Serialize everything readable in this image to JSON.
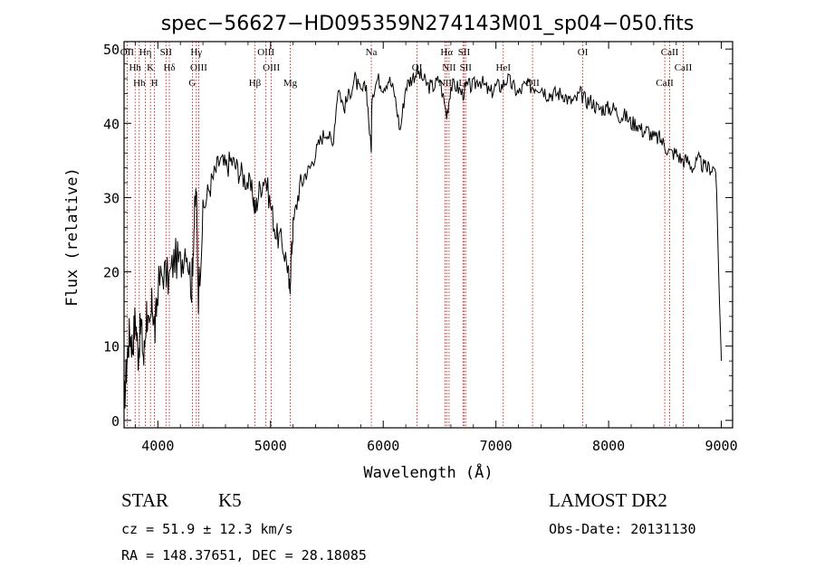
{
  "chart_data": {
    "type": "line",
    "title": "spec−56627−HD095359N274143M01_sp04−050.fits",
    "xlabel": "Wavelength (Å)",
    "ylabel": "Flux (relative)",
    "xlim": [
      3700,
      9100
    ],
    "ylim": [
      -1,
      51
    ],
    "xticks": [
      4000,
      5000,
      6000,
      7000,
      8000,
      9000
    ],
    "yticks": [
      0,
      10,
      20,
      30,
      40,
      50
    ],
    "grid": false,
    "legend": "none",
    "line_color": "#000000",
    "marker_color": "#cc0000",
    "series": [
      {
        "x": [
          3700,
          3725,
          3750,
          3775,
          3800,
          3825,
          3850,
          3875,
          3900,
          3925,
          3950,
          3975,
          4000,
          4050,
          4100,
          4150,
          4200,
          4250,
          4300,
          4320,
          4340,
          4360,
          4400,
          4450,
          4500,
          4550,
          4600,
          4650,
          4700,
          4750,
          4800,
          4850,
          4861,
          4900,
          4950,
          5000,
          5050,
          5100,
          5150,
          5170,
          5183,
          5200,
          5250,
          5300,
          5350,
          5400,
          5450,
          5500,
          5550,
          5600,
          5650,
          5700,
          5750,
          5800,
          5850,
          5893,
          5900,
          5950,
          6000,
          6050,
          6100,
          6150,
          6200,
          6250,
          6300,
          6350,
          6400,
          6450,
          6500,
          6563,
          6600,
          6650,
          6700,
          6750,
          6800,
          6850,
          6900,
          6950,
          7000,
          7050,
          7100,
          7150,
          7200,
          7250,
          7300,
          7350,
          7400,
          7450,
          7500,
          7550,
          7600,
          7650,
          7700,
          7750,
          7800,
          7850,
          7900,
          7950,
          8000,
          8050,
          8100,
          8150,
          8200,
          8250,
          8300,
          8350,
          8400,
          8450,
          8500,
          8550,
          8600,
          8650,
          8700,
          8750,
          8800,
          8850,
          8900,
          8950,
          9000
        ],
        "y": [
          2,
          8,
          12,
          10,
          14,
          9,
          13,
          8,
          15,
          11,
          16,
          12,
          18,
          20,
          19,
          22,
          21,
          24,
          18,
          26,
          31,
          17,
          28,
          31,
          33,
          35,
          34,
          35,
          34,
          33,
          32,
          30,
          28,
          31,
          33,
          29,
          25,
          24,
          21,
          17,
          22,
          26,
          31,
          33,
          34,
          36,
          38,
          39,
          37,
          45,
          42,
          44,
          46,
          44,
          45,
          36,
          44,
          46,
          45,
          46,
          44,
          39,
          45,
          46,
          47,
          46,
          45,
          45,
          46,
          41,
          45,
          45,
          44,
          45,
          45,
          46,
          45,
          44,
          45,
          45,
          46,
          45,
          44,
          45,
          45,
          45,
          45,
          44,
          44,
          44,
          44,
          43,
          43,
          44,
          43,
          43,
          42,
          42,
          42,
          42,
          41,
          41,
          40,
          40,
          39,
          39,
          38,
          38,
          37,
          36,
          36,
          35,
          35,
          34,
          35,
          34,
          34,
          34,
          8
        ]
      }
    ],
    "lines": [
      {
        "x": 3727,
        "label": "OII"
      },
      {
        "x": 3798,
        "label": "Hh"
      },
      {
        "x": 3835,
        "label": "Hh"
      },
      {
        "x": 3889,
        "label": "Hη"
      },
      {
        "x": 3934,
        "label": "K"
      },
      {
        "x": 3970,
        "label": "H"
      },
      {
        "x": 4072,
        "label": "SII"
      },
      {
        "x": 4102,
        "label": "Hδ"
      },
      {
        "x": 4306,
        "label": "G"
      },
      {
        "x": 4341,
        "label": "Hγ"
      },
      {
        "x": 4363,
        "label": "OIII"
      },
      {
        "x": 4861,
        "label": "Hβ"
      },
      {
        "x": 4959,
        "label": "OIII"
      },
      {
        "x": 5007,
        "label": "OIII"
      },
      {
        "x": 5175,
        "label": "Mg"
      },
      {
        "x": 5894,
        "label": "Na"
      },
      {
        "x": 6300,
        "label": "OI"
      },
      {
        "x": 6548,
        "label": "NII"
      },
      {
        "x": 6563,
        "label": "Hα"
      },
      {
        "x": 6584,
        "label": "NII"
      },
      {
        "x": 6707,
        "label": "Li"
      },
      {
        "x": 6717,
        "label": "SII"
      },
      {
        "x": 6731,
        "label": "SII"
      },
      {
        "x": 7325,
        "label": "OII"
      },
      {
        "x": 7771,
        "label": "OI"
      },
      {
        "x": 7065,
        "label": "HeI"
      },
      {
        "x": 8498,
        "label": "CaII"
      },
      {
        "x": 8542,
        "label": "CaII"
      },
      {
        "x": 8662,
        "label": "CaII"
      }
    ]
  },
  "info": {
    "object_type": "STAR",
    "subclass": "K5",
    "survey": "LAMOST DR2",
    "cz": "cz = 51.9 ± 12.3 km/s",
    "obs_date": "Obs-Date: 20131130",
    "coords": "RA = 148.37651, DEC =  28.18085"
  }
}
